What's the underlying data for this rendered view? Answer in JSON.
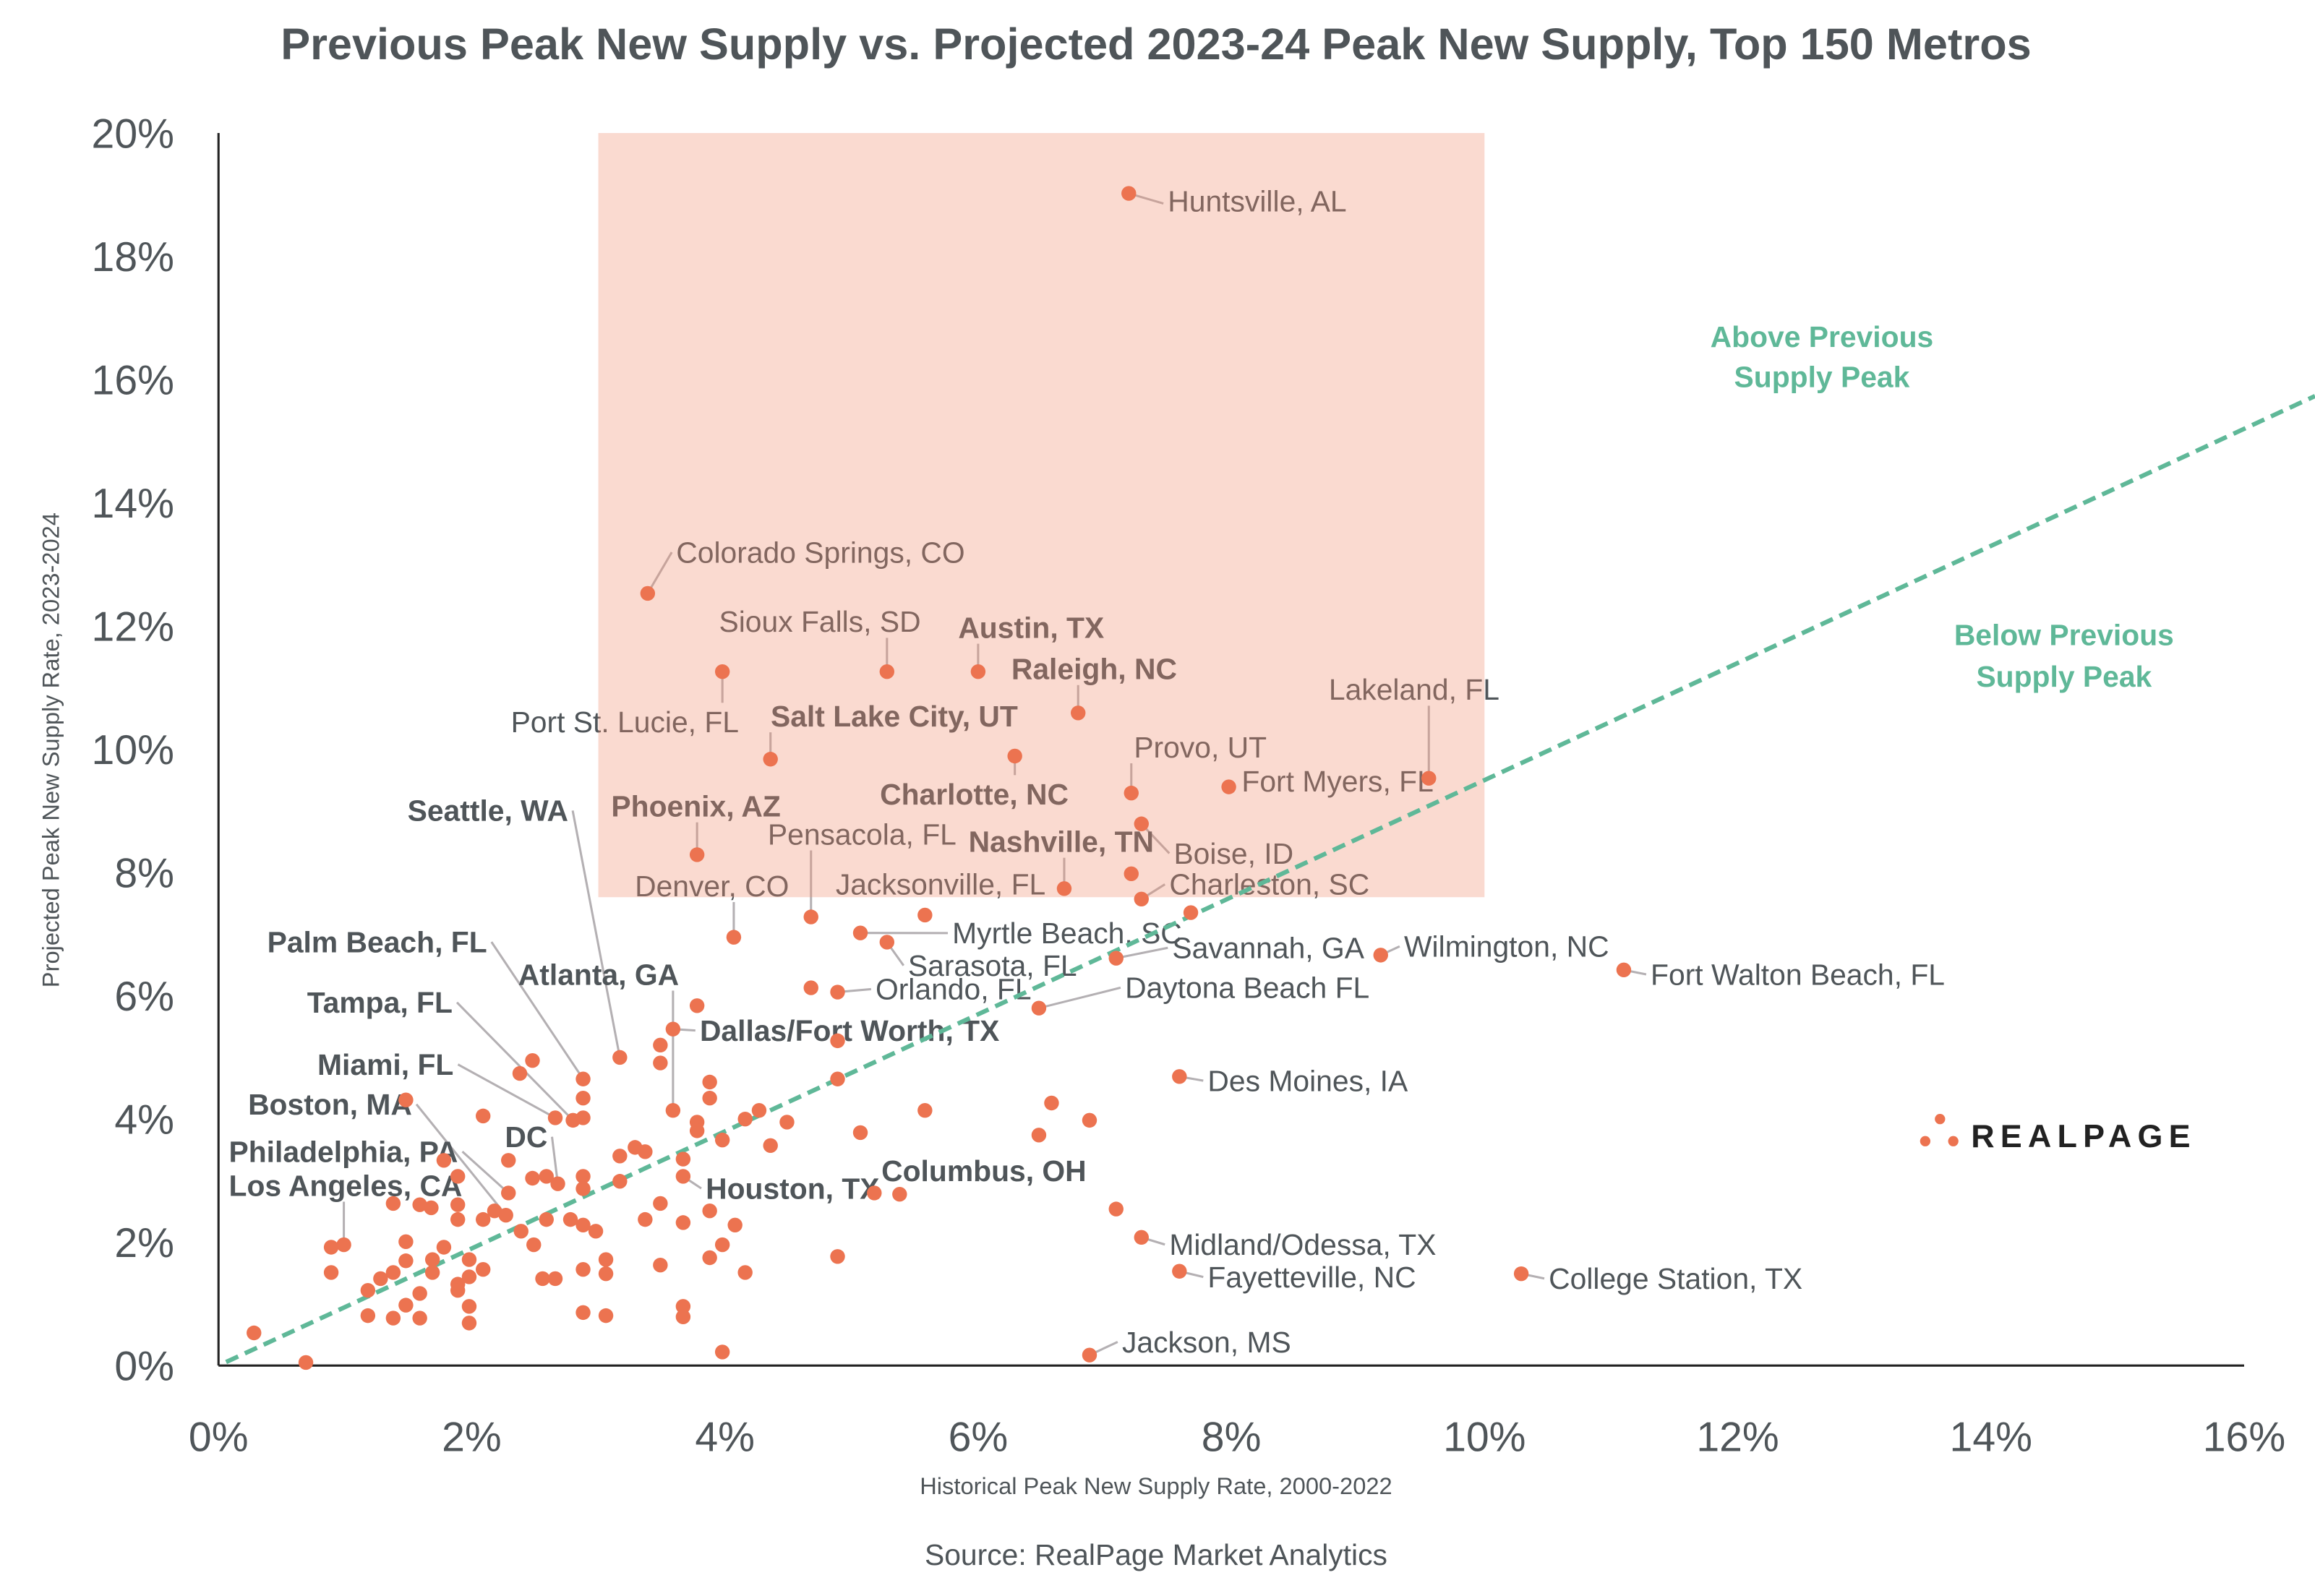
{
  "chart_data": {
    "type": "scatter",
    "title": "Previous Peak New Supply vs. Projected 2023-24 Peak New Supply, Top 150 Metros",
    "xlabel": "Historical Peak New Supply Rate, 2000-2022",
    "ylabel": "Projected Peak New Supply Rate, 2023-2024",
    "source": "Source: RealPage Market Analytics",
    "xlim": [
      0,
      16
    ],
    "ylim": [
      0,
      20
    ],
    "x_ticks": [
      "0%",
      "2%",
      "4%",
      "6%",
      "8%",
      "10%",
      "12%",
      "14%",
      "16%"
    ],
    "y_ticks": [
      "0%",
      "2%",
      "4%",
      "6%",
      "8%",
      "10%",
      "12%",
      "14%",
      "16%",
      "18%",
      "20%"
    ],
    "grid": false,
    "point_color": "#ec7350",
    "highlight_region": {
      "x": [
        3,
        10
      ],
      "y": [
        7.6,
        20
      ],
      "color": "#f8d6cc"
    },
    "reference_line": {
      "slope": 0.95,
      "style": "dashed",
      "color": "#5fb898"
    },
    "annotations": [
      {
        "lines": [
          "Above Previous",
          "Supply Peak"
        ]
      },
      {
        "lines": [
          "Below Previous",
          "Supply Peak"
        ]
      }
    ],
    "logo": "REALPAGE",
    "points": [
      {
        "x": 7.19,
        "y": 19.02,
        "label": "Huntsville, AL",
        "bold": false
      },
      {
        "x": 3.39,
        "y": 12.53,
        "label": "Colorado Springs, CO",
        "bold": false
      },
      {
        "x": 3.98,
        "y": 11.26,
        "label": "Port St. Lucie, FL",
        "bold": false
      },
      {
        "x": 5.28,
        "y": 11.26,
        "label": "Sioux Falls, SD",
        "bold": false
      },
      {
        "x": 6.0,
        "y": 11.26,
        "label": "Austin, TX",
        "bold": true
      },
      {
        "x": 6.79,
        "y": 10.59,
        "label": "Raleigh, NC",
        "bold": true
      },
      {
        "x": 4.36,
        "y": 9.84,
        "label": "Salt Lake City, UT",
        "bold": true
      },
      {
        "x": 6.29,
        "y": 9.89,
        "label": "Charlotte, NC",
        "bold": true
      },
      {
        "x": 7.21,
        "y": 9.29,
        "label": "Provo, UT",
        "bold": false
      },
      {
        "x": 7.98,
        "y": 9.39,
        "label": "Fort Myers, FL",
        "bold": false
      },
      {
        "x": 9.56,
        "y": 9.53,
        "label": "Lakeland, FL",
        "bold": false
      },
      {
        "x": 7.29,
        "y": 8.79,
        "label": "Boise, ID",
        "bold": false
      },
      {
        "x": 3.78,
        "y": 8.29,
        "label": "Phoenix, AZ",
        "bold": true
      },
      {
        "x": 6.68,
        "y": 7.74,
        "label": "Nashville, TN",
        "bold": true
      },
      {
        "x": 7.29,
        "y": 7.57,
        "label": "Charleston, SC",
        "bold": false
      },
      {
        "x": 4.68,
        "y": 7.28,
        "label": "Pensacola, FL",
        "bold": false
      },
      {
        "x": 4.07,
        "y": 6.95,
        "label": "Denver, CO",
        "bold": false
      },
      {
        "x": 5.58,
        "y": 7.31,
        "label": "Jacksonville, FL",
        "bold": false
      },
      {
        "x": 5.07,
        "y": 7.02,
        "label": "Myrtle Beach, SC",
        "bold": false
      },
      {
        "x": 7.09,
        "y": 6.61,
        "label": "Savannah, GA",
        "bold": false
      },
      {
        "x": 9.18,
        "y": 6.66,
        "label": "Wilmington, NC",
        "bold": false
      },
      {
        "x": 11.1,
        "y": 6.42,
        "label": "Fort Walton Beach, FL",
        "bold": false
      },
      {
        "x": 6.48,
        "y": 5.8,
        "label": "Daytona Beach FL",
        "bold": false
      },
      {
        "x": 5.28,
        "y": 6.87,
        "label": "Sarasota, FL",
        "bold": false
      },
      {
        "x": 4.89,
        "y": 6.06,
        "label": "Orlando, FL",
        "bold": false
      },
      {
        "x": 3.59,
        "y": 5.46,
        "label": "Dallas/Fort Worth, TX",
        "bold": true
      },
      {
        "x": 7.59,
        "y": 4.69,
        "label": "Des Moines, IA",
        "bold": false
      },
      {
        "x": 3.17,
        "y": 5.0,
        "label": "Seattle, WA",
        "bold": true
      },
      {
        "x": 2.88,
        "y": 4.65,
        "label": "Palm Beach, FL",
        "bold": true
      },
      {
        "x": 2.8,
        "y": 3.98,
        "label": "Tampa, FL",
        "bold": true
      },
      {
        "x": 2.66,
        "y": 4.02,
        "label": "Miami, FL",
        "bold": true
      },
      {
        "x": 3.59,
        "y": 4.14,
        "label": "Atlanta, GA",
        "bold": true
      },
      {
        "x": 2.27,
        "y": 2.44,
        "label": "Boston, MA",
        "bold": true
      },
      {
        "x": 2.68,
        "y": 2.95,
        "label": "DC",
        "bold": true
      },
      {
        "x": 0.99,
        "y": 1.96,
        "label": "Los Angeles, CA",
        "bold": true
      },
      {
        "x": 2.29,
        "y": 2.8,
        "label": "Philadelphia, PA",
        "bold": true
      },
      {
        "x": 3.67,
        "y": 3.07,
        "label": "Houston, TX",
        "bold": true
      },
      {
        "x": 5.38,
        "y": 2.78,
        "label": "Columbus, OH",
        "bold": true
      },
      {
        "x": 7.29,
        "y": 2.08,
        "label": "Midland/Odessa, TX",
        "bold": false
      },
      {
        "x": 7.59,
        "y": 1.53,
        "label": "Fayetteville, NC",
        "bold": false
      },
      {
        "x": 10.29,
        "y": 1.49,
        "label": "College Station, TX",
        "bold": false
      },
      {
        "x": 6.88,
        "y": 0.17,
        "label": "Jackson, MS",
        "bold": false
      },
      {
        "x": 7.21,
        "y": 7.98
      },
      {
        "x": 7.68,
        "y": 7.35
      },
      {
        "x": 4.68,
        "y": 6.13
      },
      {
        "x": 3.78,
        "y": 5.84
      },
      {
        "x": 3.49,
        "y": 5.2
      },
      {
        "x": 3.49,
        "y": 4.91
      },
      {
        "x": 4.89,
        "y": 5.27
      },
      {
        "x": 4.89,
        "y": 4.65
      },
      {
        "x": 2.48,
        "y": 4.95
      },
      {
        "x": 2.38,
        "y": 4.74
      },
      {
        "x": 2.88,
        "y": 4.34
      },
      {
        "x": 2.88,
        "y": 4.02
      },
      {
        "x": 3.88,
        "y": 4.6
      },
      {
        "x": 3.88,
        "y": 4.34
      },
      {
        "x": 3.78,
        "y": 3.95
      },
      {
        "x": 3.78,
        "y": 3.81
      },
      {
        "x": 2.09,
        "y": 4.05
      },
      {
        "x": 1.48,
        "y": 4.31
      },
      {
        "x": 3.37,
        "y": 3.47
      },
      {
        "x": 3.29,
        "y": 3.54
      },
      {
        "x": 3.98,
        "y": 3.66
      },
      {
        "x": 4.27,
        "y": 4.14
      },
      {
        "x": 4.16,
        "y": 4.0
      },
      {
        "x": 4.49,
        "y": 3.95
      },
      {
        "x": 4.36,
        "y": 3.57
      },
      {
        "x": 5.07,
        "y": 3.78
      },
      {
        "x": 5.58,
        "y": 4.14
      },
      {
        "x": 6.58,
        "y": 4.26
      },
      {
        "x": 6.48,
        "y": 3.74
      },
      {
        "x": 6.88,
        "y": 3.98
      },
      {
        "x": 3.67,
        "y": 3.35
      },
      {
        "x": 3.17,
        "y": 3.4
      },
      {
        "x": 3.17,
        "y": 2.99
      },
      {
        "x": 3.88,
        "y": 2.51
      },
      {
        "x": 3.49,
        "y": 2.63
      },
      {
        "x": 3.37,
        "y": 2.37
      },
      {
        "x": 3.67,
        "y": 2.32
      },
      {
        "x": 4.08,
        "y": 2.28
      },
      {
        "x": 3.98,
        "y": 1.96
      },
      {
        "x": 3.88,
        "y": 1.75
      },
      {
        "x": 4.16,
        "y": 1.51
      },
      {
        "x": 3.49,
        "y": 1.63
      },
      {
        "x": 5.18,
        "y": 2.8
      },
      {
        "x": 4.89,
        "y": 1.77
      },
      {
        "x": 7.09,
        "y": 2.54
      },
      {
        "x": 3.98,
        "y": 0.22
      },
      {
        "x": 3.67,
        "y": 0.96
      },
      {
        "x": 3.67,
        "y": 0.79
      },
      {
        "x": 2.88,
        "y": 3.07
      },
      {
        "x": 2.88,
        "y": 2.87
      },
      {
        "x": 2.48,
        "y": 3.04
      },
      {
        "x": 2.29,
        "y": 3.33
      },
      {
        "x": 2.39,
        "y": 2.18
      },
      {
        "x": 2.49,
        "y": 1.96
      },
      {
        "x": 2.59,
        "y": 2.37
      },
      {
        "x": 2.78,
        "y": 2.37
      },
      {
        "x": 2.88,
        "y": 2.28
      },
      {
        "x": 2.98,
        "y": 2.18
      },
      {
        "x": 3.06,
        "y": 1.72
      },
      {
        "x": 3.06,
        "y": 1.49
      },
      {
        "x": 2.88,
        "y": 1.56
      },
      {
        "x": 2.66,
        "y": 1.41
      },
      {
        "x": 2.56,
        "y": 1.41
      },
      {
        "x": 3.06,
        "y": 0.81
      },
      {
        "x": 2.88,
        "y": 0.86
      },
      {
        "x": 1.98,
        "y": 0.96
      },
      {
        "x": 1.98,
        "y": 0.69
      },
      {
        "x": 2.09,
        "y": 2.37
      },
      {
        "x": 2.18,
        "y": 2.51
      },
      {
        "x": 1.89,
        "y": 2.61
      },
      {
        "x": 1.89,
        "y": 2.37
      },
      {
        "x": 1.98,
        "y": 1.72
      },
      {
        "x": 1.98,
        "y": 1.44
      },
      {
        "x": 1.89,
        "y": 1.32
      },
      {
        "x": 1.89,
        "y": 1.22
      },
      {
        "x": 1.78,
        "y": 1.92
      },
      {
        "x": 1.69,
        "y": 1.72
      },
      {
        "x": 1.69,
        "y": 1.51
      },
      {
        "x": 1.59,
        "y": 2.61
      },
      {
        "x": 1.68,
        "y": 2.56
      },
      {
        "x": 1.48,
        "y": 2.01
      },
      {
        "x": 1.48,
        "y": 1.7
      },
      {
        "x": 1.59,
        "y": 1.17
      },
      {
        "x": 1.38,
        "y": 1.51
      },
      {
        "x": 1.28,
        "y": 1.41
      },
      {
        "x": 1.18,
        "y": 1.22
      },
      {
        "x": 1.18,
        "y": 0.81
      },
      {
        "x": 1.38,
        "y": 0.77
      },
      {
        "x": 1.48,
        "y": 0.98
      },
      {
        "x": 1.59,
        "y": 0.77
      },
      {
        "x": 1.38,
        "y": 2.63
      },
      {
        "x": 0.89,
        "y": 1.92
      },
      {
        "x": 0.89,
        "y": 1.51
      },
      {
        "x": 0.28,
        "y": 0.53
      },
      {
        "x": 0.69,
        "y": 0.05
      },
      {
        "x": 1.78,
        "y": 3.33
      },
      {
        "x": 1.89,
        "y": 3.07
      },
      {
        "x": 2.59,
        "y": 3.07
      },
      {
        "x": 2.09,
        "y": 1.56
      }
    ]
  }
}
